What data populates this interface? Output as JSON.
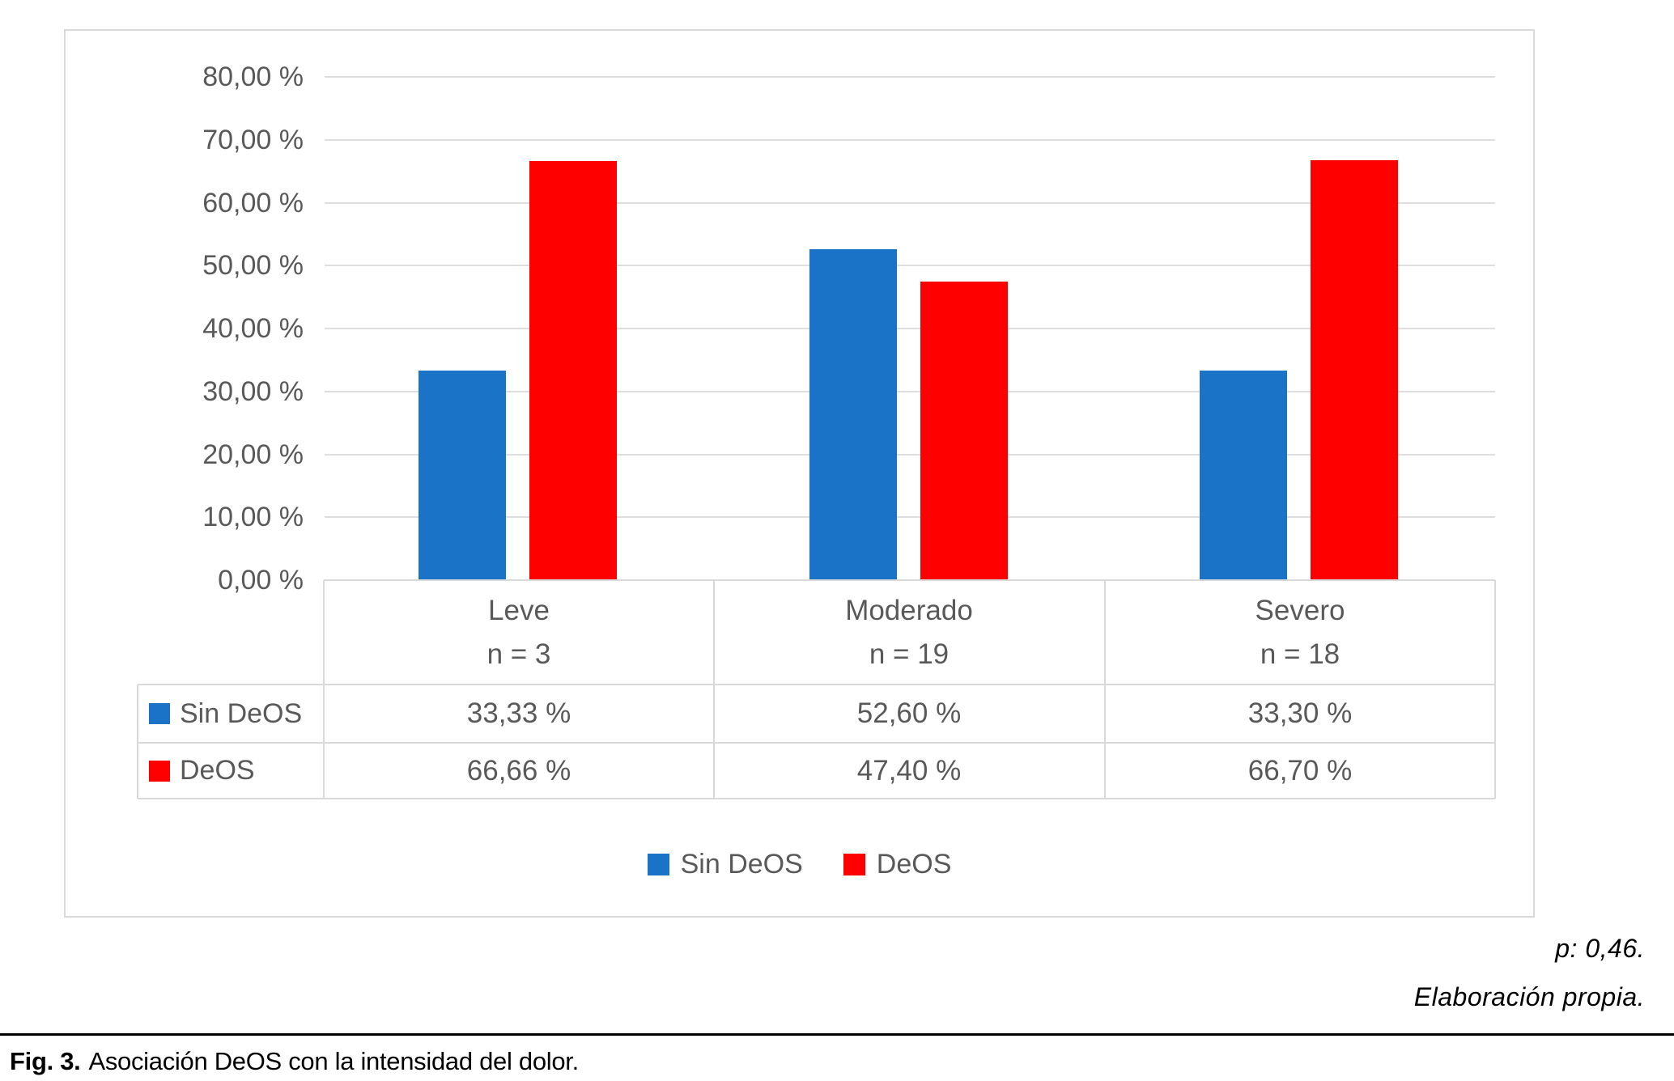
{
  "chart_data": {
    "type": "bar",
    "title": "",
    "xlabel": "",
    "ylabel": "",
    "categories": [
      {
        "label": "Leve",
        "n_label": "n = 3"
      },
      {
        "label": "Moderado",
        "n_label": "n = 19"
      },
      {
        "label": "Severo",
        "n_label": "n = 18"
      }
    ],
    "series": [
      {
        "name": "Sin DeOS",
        "color": "#1b73c8",
        "values": [
          33.33,
          52.6,
          33.3
        ],
        "formatted": [
          "33,33 %",
          "52,60 %",
          "33,30 %"
        ]
      },
      {
        "name": "DeOS",
        "color": "#ff0000",
        "values": [
          66.66,
          47.4,
          66.7
        ],
        "formatted": [
          "66,66 %",
          "47,40 %",
          "66,70 %"
        ]
      }
    ],
    "y_axis": {
      "min": 0,
      "max": 80,
      "step": 10,
      "tick_labels": [
        "0,00 %",
        "10,00 %",
        "20,00 %",
        "30,00 %",
        "40,00 %",
        "50,00 %",
        "60,00 %",
        "70,00 %",
        "80,00 %"
      ]
    },
    "grid": true,
    "legend_position": "bottom",
    "data_table_shown": true
  },
  "annotations": {
    "p_value": "p: 0,46.",
    "source": "Elaboración propia."
  },
  "caption": {
    "label": "Fig. 3.",
    "text": "Asociación DeOS con la intensidad del dolor."
  }
}
